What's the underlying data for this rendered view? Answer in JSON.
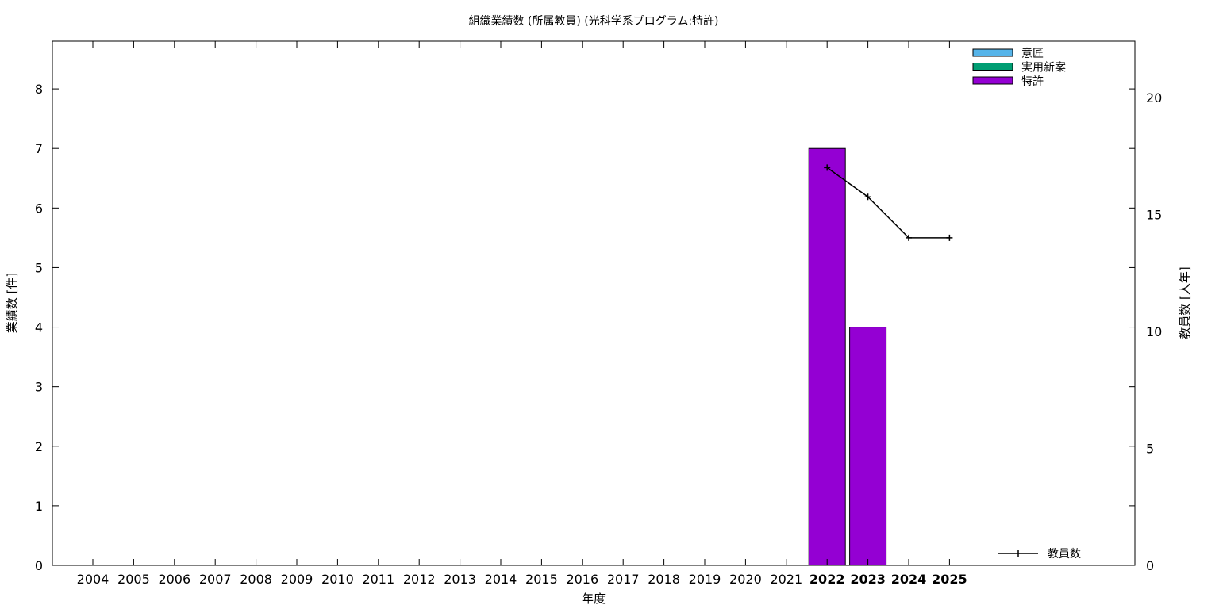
{
  "chart_data": {
    "type": "bar",
    "title": "組織業績数 (所属教員) (光科学系プログラム:特許)",
    "xlabel": "年度",
    "ylabel": "業績数 [件]",
    "y2label": "教員数 [人年]",
    "categories": [
      "2004",
      "2005",
      "2006",
      "2007",
      "2008",
      "2009",
      "2010",
      "2011",
      "2012",
      "2013",
      "2014",
      "2015",
      "2016",
      "2017",
      "2018",
      "2019",
      "2020",
      "2021",
      "2022",
      "2023",
      "2024",
      "2025"
    ],
    "bold_categories": [
      "2022",
      "2023",
      "2024",
      "2025"
    ],
    "ylim": [
      0,
      8.8
    ],
    "yticks": [
      0,
      1,
      2,
      3,
      4,
      5,
      6,
      7,
      8
    ],
    "y2lim": [
      0,
      22.4
    ],
    "y2ticks": [
      0,
      5,
      10,
      15,
      20
    ],
    "series": [
      {
        "name": "意匠",
        "color": "#56b4e9",
        "values": [
          0,
          0,
          0,
          0,
          0,
          0,
          0,
          0,
          0,
          0,
          0,
          0,
          0,
          0,
          0,
          0,
          0,
          0,
          0,
          0,
          0,
          0
        ]
      },
      {
        "name": "実用新案",
        "color": "#009e73",
        "values": [
          0,
          0,
          0,
          0,
          0,
          0,
          0,
          0,
          0,
          0,
          0,
          0,
          0,
          0,
          0,
          0,
          0,
          0,
          0,
          0,
          0,
          0
        ]
      },
      {
        "name": "特許",
        "color": "#9400d3",
        "values": [
          0,
          0,
          0,
          0,
          0,
          0,
          0,
          0,
          0,
          0,
          0,
          0,
          0,
          0,
          0,
          0,
          0,
          0,
          7,
          4,
          0,
          0
        ]
      }
    ],
    "line_series": {
      "name": "教員数",
      "color": "#000000",
      "axis": "y2",
      "x": [
        "2022",
        "2023",
        "2024",
        "2025"
      ],
      "values": [
        17.0,
        15.75,
        14.0,
        14.0
      ]
    },
    "legend": {
      "bars_position": "top-right",
      "line_position": "bottom-right"
    },
    "grid": false
  }
}
